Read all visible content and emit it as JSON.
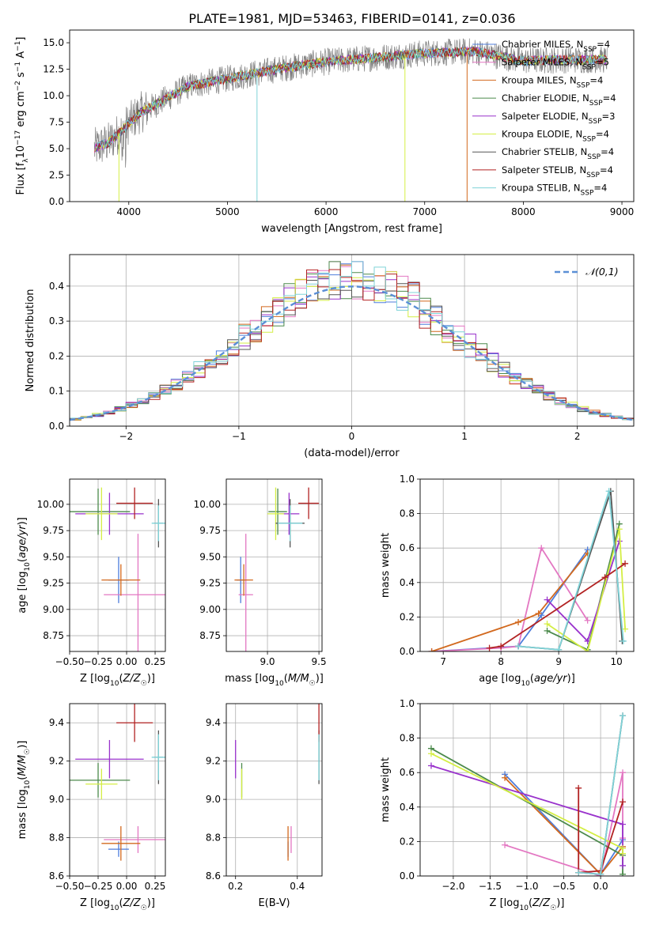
{
  "figure": {
    "title": "PLATE=1981, MJD=53463, FIBERID=0141, z=0.036"
  },
  "colors": {
    "Chabrier MILES": "#4f7ddb",
    "Salpeter MILES": "#e377c2",
    "Kroupa MILES": "#d2691e",
    "Chabrier ELODIE": "#4c8a4c",
    "Salpeter ELODIE": "#9932cc",
    "Kroupa ELODIE": "#d4ee44",
    "Chabrier STELIB": "#555555",
    "Salpeter STELIB": "#b22222",
    "Kroupa STELIB": "#7fd3d8",
    "data": "#808080",
    "gaussian": "#5b8fd6",
    "grid": "#b0b0b0"
  },
  "chart_data": [
    {
      "id": "spectrum",
      "type": "line",
      "xlabel": "wavelength [Angstrom, rest frame]",
      "ylabel": "Flux [f_λ 10^-17 erg cm^-2 s^-1 A^-1]",
      "xlim": [
        3400,
        9120
      ],
      "ylim": [
        0,
        16.2
      ],
      "xticks": [
        4000,
        5000,
        6000,
        7000,
        8000,
        9000
      ],
      "yticks": [
        0.0,
        2.5,
        5.0,
        7.5,
        10.0,
        12.5,
        15.0
      ],
      "grid": false,
      "legend_position": "top-right",
      "x_range_data": [
        3650,
        8850
      ],
      "continuum": [
        [
          3650,
          5.0
        ],
        [
          3800,
          5.6
        ],
        [
          3950,
          6.9
        ],
        [
          4100,
          8.3
        ],
        [
          4300,
          9.3
        ],
        [
          4600,
          10.9
        ],
        [
          5000,
          11.6
        ],
        [
          5500,
          12.5
        ],
        [
          6000,
          13.2
        ],
        [
          6500,
          13.6
        ],
        [
          7000,
          14.0
        ],
        [
          7500,
          14.2
        ],
        [
          8000,
          13.3
        ],
        [
          8500,
          13.4
        ],
        [
          8850,
          13.4
        ]
      ],
      "legend": [
        {
          "model": "Chabrier MILES",
          "label": "Chabrier MILES, N",
          "nssp": "4"
        },
        {
          "model": "Salpeter MILES",
          "label": "Salpeter MILES, N",
          "nssp": "5"
        },
        {
          "model": "Kroupa MILES",
          "label": "Kroupa MILES, N",
          "nssp": "4"
        },
        {
          "model": "Chabrier ELODIE",
          "label": "Chabrier ELODIE, N",
          "nssp": "4"
        },
        {
          "model": "Salpeter ELODIE",
          "label": "Salpeter ELODIE, N",
          "nssp": "3"
        },
        {
          "model": "Kroupa ELODIE",
          "label": "Kroupa ELODIE, N",
          "nssp": "4"
        },
        {
          "model": "Chabrier STELIB",
          "label": "Chabrier STELIB, N",
          "nssp": "4"
        },
        {
          "model": "Salpeter STELIB",
          "label": "Salpeter STELIB, N",
          "nssp": "4"
        },
        {
          "model": "Kroupa STELIB",
          "label": "Kroupa STELIB, N",
          "nssp": "4"
        }
      ]
    },
    {
      "id": "residuals",
      "type": "histogram",
      "xlabel": "(data-model)/error",
      "ylabel": "Normed distribution",
      "xlim": [
        -2.5,
        2.5
      ],
      "ylim": [
        0,
        0.49
      ],
      "xticks": [
        -2,
        -1,
        0,
        1,
        2
      ],
      "yticks": [
        0.0,
        0.1,
        0.2,
        0.3,
        0.4
      ],
      "grid": true,
      "legend_position": "top-right",
      "legend_label": "𝒩(0,1)",
      "gaussian": {
        "mean": 0,
        "sigma": 1
      }
    },
    {
      "id": "age-vs-Z",
      "type": "scatter",
      "xlabel": "Z [log10(Z/Z☉)]",
      "ylabel": "age  [log10(age/yr)]",
      "xlim": [
        -0.5,
        0.34
      ],
      "ylim": [
        8.6,
        10.24
      ],
      "xticks": [
        -0.5,
        -0.25,
        0.0,
        0.25
      ],
      "xticklabels": [
        "−0.50",
        "−0.25",
        "0.00",
        "0.25"
      ],
      "yticks": [
        8.75,
        9.0,
        9.25,
        9.5,
        9.75,
        10.0
      ],
      "grid": true,
      "points": [
        {
          "model": "Chabrier MILES",
          "x": -0.07,
          "y": 9.28,
          "xerr": 0.09,
          "yerr": 0.22
        },
        {
          "model": "Salpeter MILES",
          "x": 0.1,
          "y": 9.14,
          "xerr": 0.3,
          "yerr": 0.58
        },
        {
          "model": "Kroupa MILES",
          "x": -0.05,
          "y": 9.28,
          "xerr": 0.17,
          "yerr": 0.15
        },
        {
          "model": "Chabrier ELODIE",
          "x": -0.25,
          "y": 9.93,
          "xerr": 0.28,
          "yerr": 0.22
        },
        {
          "model": "Salpeter ELODIE",
          "x": -0.15,
          "y": 9.91,
          "xerr": 0.3,
          "yerr": 0.2
        },
        {
          "model": "Kroupa ELODIE",
          "x": -0.22,
          "y": 9.91,
          "xerr": 0.14,
          "yerr": 0.25
        },
        {
          "model": "Chabrier STELIB",
          "x": 0.28,
          "y": 9.82,
          "xerr": 0.04,
          "yerr": 0.23
        },
        {
          "model": "Salpeter STELIB",
          "x": 0.07,
          "y": 10.01,
          "xerr": 0.16,
          "yerr": 0.15
        },
        {
          "model": "Kroupa STELIB",
          "x": 0.28,
          "y": 9.82,
          "xerr": 0.06,
          "yerr": 0.17
        }
      ]
    },
    {
      "id": "age-vs-mass",
      "type": "scatter",
      "xlabel": "mass [log10(M/M☉)]",
      "ylabel": "",
      "xlim": [
        8.6,
        9.53
      ],
      "ylim": [
        8.6,
        10.24
      ],
      "xticks": [
        9.0,
        9.5
      ],
      "yticks": [
        8.75,
        9.0,
        9.25,
        9.5,
        9.75,
        10.0
      ],
      "grid": true,
      "points": [
        {
          "model": "Chabrier MILES",
          "x": 8.74,
          "y": 9.28,
          "xerr": 0.04,
          "yerr": 0.22
        },
        {
          "model": "Salpeter MILES",
          "x": 8.79,
          "y": 9.14,
          "xerr": 0.07,
          "yerr": 0.58
        },
        {
          "model": "Kroupa MILES",
          "x": 8.77,
          "y": 9.28,
          "xerr": 0.09,
          "yerr": 0.15
        },
        {
          "model": "Chabrier ELODIE",
          "x": 9.1,
          "y": 9.93,
          "xerr": 0.09,
          "yerr": 0.22
        },
        {
          "model": "Salpeter ELODIE",
          "x": 9.21,
          "y": 9.91,
          "xerr": 0.1,
          "yerr": 0.2
        },
        {
          "model": "Kroupa ELODIE",
          "x": 9.08,
          "y": 9.91,
          "xerr": 0.08,
          "yerr": 0.25
        },
        {
          "model": "Chabrier STELIB",
          "x": 9.22,
          "y": 9.82,
          "xerr": 0.14,
          "yerr": 0.23
        },
        {
          "model": "Salpeter STELIB",
          "x": 9.4,
          "y": 10.01,
          "xerr": 0.1,
          "yerr": 0.15
        },
        {
          "model": "Kroupa STELIB",
          "x": 9.22,
          "y": 9.82,
          "xerr": 0.12,
          "yerr": 0.17
        }
      ]
    },
    {
      "id": "weight-vs-age",
      "type": "line",
      "xlabel": "age  [log10(age/yr)]",
      "ylabel": "mass weight",
      "xlim": [
        6.6,
        10.3
      ],
      "ylim": [
        0,
        1.0
      ],
      "xticks": [
        7,
        8,
        9,
        10
      ],
      "yticks": [
        0.0,
        0.2,
        0.4,
        0.6,
        0.8,
        1.0
      ],
      "grid": true,
      "series": [
        {
          "model": "Chabrier MILES",
          "x": [
            6.8,
            8.3,
            8.7,
            9.5
          ],
          "y": [
            0.0,
            0.03,
            0.21,
            0.59
          ]
        },
        {
          "model": "Salpeter MILES",
          "x": [
            6.8,
            8.0,
            8.3,
            8.7,
            9.5
          ],
          "y": [
            0.0,
            0.02,
            0.03,
            0.6,
            0.18
          ]
        },
        {
          "model": "Kroupa MILES",
          "x": [
            6.8,
            8.3,
            8.65,
            9.5
          ],
          "y": [
            0.0,
            0.17,
            0.22,
            0.57
          ]
        },
        {
          "model": "Chabrier ELODIE",
          "x": [
            8.8,
            9.5,
            10.05
          ],
          "y": [
            0.12,
            0.01,
            0.74
          ]
        },
        {
          "model": "Salpeter ELODIE",
          "x": [
            8.8,
            9.5,
            10.05
          ],
          "y": [
            0.3,
            0.06,
            0.64
          ]
        },
        {
          "model": "Kroupa ELODIE",
          "x": [
            8.8,
            9.5,
            10.05,
            10.15
          ],
          "y": [
            0.16,
            0.0,
            0.71,
            0.13
          ]
        },
        {
          "model": "Chabrier STELIB",
          "x": [
            8.3,
            9.0,
            9.9,
            10.1
          ],
          "y": [
            0.03,
            0.01,
            0.93,
            0.06
          ]
        },
        {
          "model": "Salpeter STELIB",
          "x": [
            7.8,
            8.0,
            9.8,
            10.15
          ],
          "y": [
            0.02,
            0.03,
            0.43,
            0.51
          ]
        },
        {
          "model": "Kroupa STELIB",
          "x": [
            8.3,
            9.0,
            9.87,
            10.12
          ],
          "y": [
            0.03,
            0.01,
            0.93,
            0.06
          ]
        }
      ]
    },
    {
      "id": "mass-vs-Z",
      "type": "scatter",
      "xlabel": "Z [log10(Z/Z☉)]",
      "ylabel": "mass [log10(M/M☉)]",
      "xlim": [
        -0.5,
        0.34
      ],
      "ylim": [
        8.6,
        9.5
      ],
      "xticks": [
        -0.5,
        -0.25,
        0.0,
        0.25
      ],
      "xticklabels": [
        "−0.50",
        "−0.25",
        "0.00",
        "0.25"
      ],
      "yticks": [
        8.6,
        8.8,
        9.0,
        9.2,
        9.4
      ],
      "grid": true,
      "points": [
        {
          "model": "Chabrier MILES",
          "x": -0.07,
          "y": 8.74,
          "xerr": 0.09,
          "yerr": 0.04
        },
        {
          "model": "Salpeter MILES",
          "x": 0.1,
          "y": 8.79,
          "xerr": 0.3,
          "yerr": 0.07
        },
        {
          "model": "Kroupa MILES",
          "x": -0.05,
          "y": 8.77,
          "xerr": 0.17,
          "yerr": 0.09
        },
        {
          "model": "Chabrier ELODIE",
          "x": -0.25,
          "y": 9.1,
          "xerr": 0.28,
          "yerr": 0.09
        },
        {
          "model": "Salpeter ELODIE",
          "x": -0.15,
          "y": 9.21,
          "xerr": 0.3,
          "yerr": 0.1
        },
        {
          "model": "Kroupa ELODIE",
          "x": -0.22,
          "y": 9.08,
          "xerr": 0.14,
          "yerr": 0.08
        },
        {
          "model": "Chabrier STELIB",
          "x": 0.28,
          "y": 9.22,
          "xerr": 0.04,
          "yerr": 0.14
        },
        {
          "model": "Salpeter STELIB",
          "x": 0.07,
          "y": 9.4,
          "xerr": 0.16,
          "yerr": 0.1
        },
        {
          "model": "Kroupa STELIB",
          "x": 0.28,
          "y": 9.22,
          "xerr": 0.06,
          "yerr": 0.12
        }
      ]
    },
    {
      "id": "mass-vs-ebv",
      "type": "scatter",
      "xlabel": "E(B-V)",
      "ylabel": "",
      "xlim": [
        0.17,
        0.48
      ],
      "ylim": [
        8.6,
        9.5
      ],
      "xticks": [
        0.2,
        0.4
      ],
      "yticks": [
        8.6,
        8.8,
        9.0,
        9.2,
        9.4
      ],
      "grid": true,
      "points": [
        {
          "model": "Chabrier MILES",
          "x": 0.37,
          "y": 8.74,
          "xerr": 0.0,
          "yerr": 0.04
        },
        {
          "model": "Salpeter MILES",
          "x": 0.38,
          "y": 8.79,
          "xerr": 0.0,
          "yerr": 0.07
        },
        {
          "model": "Kroupa MILES",
          "x": 0.37,
          "y": 8.77,
          "xerr": 0.0,
          "yerr": 0.09
        },
        {
          "model": "Chabrier ELODIE",
          "x": 0.22,
          "y": 9.1,
          "xerr": 0.0,
          "yerr": 0.09
        },
        {
          "model": "Salpeter ELODIE",
          "x": 0.2,
          "y": 9.21,
          "xerr": 0.0,
          "yerr": 0.1
        },
        {
          "model": "Kroupa ELODIE",
          "x": 0.22,
          "y": 9.08,
          "xerr": 0.0,
          "yerr": 0.08
        },
        {
          "model": "Chabrier STELIB",
          "x": 0.47,
          "y": 9.22,
          "xerr": 0.0,
          "yerr": 0.14
        },
        {
          "model": "Salpeter STELIB",
          "x": 0.47,
          "y": 9.4,
          "xerr": 0.0,
          "yerr": 0.1
        },
        {
          "model": "Kroupa STELIB",
          "x": 0.47,
          "y": 9.22,
          "xerr": 0.0,
          "yerr": 0.12
        }
      ]
    },
    {
      "id": "weight-vs-Z",
      "type": "line",
      "xlabel": "Z [log10(Z/Z☉)]",
      "ylabel": "mass weight",
      "xlim": [
        -2.45,
        0.45
      ],
      "ylim": [
        0,
        1.0
      ],
      "xticks": [
        -2.0,
        -1.5,
        -1.0,
        -0.5,
        0.0
      ],
      "xticklabels": [
        "−2.0",
        "−1.5",
        "−1.0",
        "−0.5",
        "0.0"
      ],
      "yticks": [
        0.0,
        0.2,
        0.4,
        0.6,
        0.8,
        1.0
      ],
      "grid": true,
      "series": [
        {
          "model": "Chabrier MILES",
          "x": [
            -1.3,
            0.0,
            0.3
          ],
          "y": [
            0.59,
            0.01,
            0.21
          ]
        },
        {
          "model": "Salpeter MILES",
          "x": [
            -1.3,
            0.0,
            0.3,
            0.3
          ],
          "y": [
            0.18,
            0.0,
            0.6,
            0.22
          ]
        },
        {
          "model": "Kroupa MILES",
          "x": [
            -1.3,
            0.0,
            0.3
          ],
          "y": [
            0.57,
            0.01,
            0.17
          ]
        },
        {
          "model": "Chabrier ELODIE",
          "x": [
            -2.3,
            0.3,
            0.3
          ],
          "y": [
            0.74,
            0.12,
            0.01
          ]
        },
        {
          "model": "Salpeter ELODIE",
          "x": [
            -2.3,
            0.3,
            0.3
          ],
          "y": [
            0.64,
            0.3,
            0.06
          ]
        },
        {
          "model": "Kroupa ELODIE",
          "x": [
            -2.3,
            0.3,
            0.3
          ],
          "y": [
            0.71,
            0.16,
            0.13
          ]
        },
        {
          "model": "Chabrier STELIB",
          "x": [
            -0.3,
            0.0,
            0.3
          ],
          "y": [
            0.02,
            0.01,
            0.93
          ]
        },
        {
          "model": "Salpeter STELIB",
          "x": [
            -0.3,
            -0.3,
            0.0,
            0.3
          ],
          "y": [
            0.51,
            0.02,
            0.03,
            0.43
          ]
        },
        {
          "model": "Kroupa STELIB",
          "x": [
            -0.3,
            0.0,
            0.3
          ],
          "y": [
            0.02,
            0.01,
            0.93
          ]
        }
      ]
    }
  ]
}
